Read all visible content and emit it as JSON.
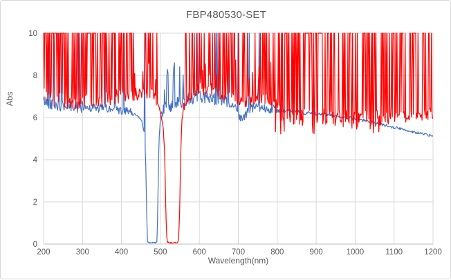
{
  "chart_data": {
    "type": "line",
    "title": "FBP480530-SET",
    "xlabel": "Wavelength(nm)",
    "ylabel": "Abs",
    "xlim": [
      200,
      1200
    ],
    "ylim": [
      0,
      10
    ],
    "x_ticks": [
      200,
      300,
      400,
      500,
      600,
      700,
      800,
      900,
      1000,
      1100,
      1200
    ],
    "y_ticks": [
      0,
      2,
      4,
      6,
      8,
      10
    ],
    "grid": true,
    "legend_position": "none",
    "sample_step_nm": 1.5,
    "noise_seed": 42,
    "clip_max_abs": 10,
    "series": [
      {
        "name": "blue",
        "color": "#4472C4",
        "line_width": 1.2,
        "passband_nm": [
          467,
          491
        ],
        "passband_min_abs": 0.07,
        "baseline_keypoints": [
          [
            200,
            6.8
          ],
          [
            230,
            6.6
          ],
          [
            260,
            6.55
          ],
          [
            300,
            6.5
          ],
          [
            340,
            6.45
          ],
          [
            380,
            6.4
          ],
          [
            420,
            6.25
          ],
          [
            440,
            6.1
          ],
          [
            452,
            5.85
          ],
          [
            458,
            5.3
          ],
          [
            462,
            4.2
          ],
          [
            465,
            1.2
          ],
          [
            467,
            0.07
          ],
          [
            491,
            0.07
          ],
          [
            493,
            1.5
          ],
          [
            496,
            4.8
          ],
          [
            500,
            6.0
          ],
          [
            505,
            6.35
          ],
          [
            520,
            6.55
          ],
          [
            545,
            6.75
          ],
          [
            570,
            6.9
          ],
          [
            600,
            7.0
          ],
          [
            630,
            6.95
          ],
          [
            660,
            6.8
          ],
          [
            685,
            6.6
          ],
          [
            700,
            6.15
          ],
          [
            710,
            5.95
          ],
          [
            718,
            6.05
          ],
          [
            728,
            6.4
          ],
          [
            750,
            6.5
          ],
          [
            775,
            6.45
          ],
          [
            800,
            6.35
          ],
          [
            840,
            6.28
          ],
          [
            880,
            6.22
          ],
          [
            920,
            6.15
          ],
          [
            960,
            6.05
          ],
          [
            1000,
            5.95
          ],
          [
            1040,
            5.8
          ],
          [
            1080,
            5.62
          ],
          [
            1120,
            5.45
          ],
          [
            1160,
            5.28
          ],
          [
            1200,
            5.12
          ]
        ],
        "noise_regions": [
          [
            200,
            300,
            0.28
          ],
          [
            300,
            435,
            0.22
          ],
          [
            435,
            502,
            0.04
          ],
          [
            502,
            560,
            0.35
          ],
          [
            560,
            700,
            0.3
          ],
          [
            700,
            800,
            0.22
          ],
          [
            800,
            900,
            0.1
          ],
          [
            900,
            1200,
            0.07
          ]
        ],
        "spike_regions": [
          [
            200,
            300,
            0.1,
            10,
            10
          ],
          [
            300,
            460,
            0.04,
            10,
            10
          ],
          [
            502,
            560,
            0.22,
            7.2,
            8.6
          ],
          [
            560,
            820,
            0.05,
            10,
            10
          ],
          [
            820,
            1060,
            0.022,
            10,
            10
          ]
        ]
      },
      {
        "name": "red",
        "color": "#FF0000",
        "line_width": 1.2,
        "passband_nm": [
          517,
          546
        ],
        "passband_min_abs": 0.07,
        "baseline_keypoints": [
          [
            200,
            7.0
          ],
          [
            240,
            6.8
          ],
          [
            280,
            6.7
          ],
          [
            320,
            6.8
          ],
          [
            360,
            6.9
          ],
          [
            400,
            7.0
          ],
          [
            440,
            7.1
          ],
          [
            470,
            7.15
          ],
          [
            485,
            7.0
          ],
          [
            495,
            6.6
          ],
          [
            502,
            6.1
          ],
          [
            507,
            5.6
          ],
          [
            511,
            4.3
          ],
          [
            514,
            1.5
          ],
          [
            517,
            0.07
          ],
          [
            546,
            0.07
          ],
          [
            549,
            1.2
          ],
          [
            552,
            4.2
          ],
          [
            555,
            5.8
          ],
          [
            560,
            6.6
          ],
          [
            570,
            7.0
          ],
          [
            590,
            7.3
          ],
          [
            620,
            7.4
          ],
          [
            650,
            7.2
          ],
          [
            680,
            7.0
          ],
          [
            700,
            6.8
          ],
          [
            712,
            6.65
          ],
          [
            725,
            6.85
          ],
          [
            750,
            6.9
          ],
          [
            775,
            6.9
          ],
          [
            795,
            6.6
          ],
          [
            810,
            6.25
          ],
          [
            840,
            6.1
          ],
          [
            880,
            6.0
          ],
          [
            920,
            6.05
          ],
          [
            960,
            5.95
          ],
          [
            1000,
            5.9
          ],
          [
            1040,
            5.95
          ],
          [
            1080,
            6.0
          ],
          [
            1120,
            6.05
          ],
          [
            1160,
            6.1
          ],
          [
            1200,
            6.2
          ]
        ],
        "noise_regions": [
          [
            200,
            300,
            0.4
          ],
          [
            300,
            430,
            0.35
          ],
          [
            430,
            495,
            0.3
          ],
          [
            495,
            558,
            0.04
          ],
          [
            558,
            700,
            0.3
          ],
          [
            700,
            795,
            0.28
          ],
          [
            795,
            1105,
            0.42
          ],
          [
            1105,
            1200,
            0.3
          ]
        ],
        "spike_regions": [
          [
            200,
            358,
            0.5,
            10,
            10
          ],
          [
            358,
            430,
            0.33,
            10,
            10
          ],
          [
            430,
            505,
            0.15,
            10,
            10
          ],
          [
            430,
            505,
            0.12,
            7.6,
            8.6
          ],
          [
            558,
            795,
            0.32,
            10,
            10
          ],
          [
            558,
            795,
            0.1,
            7.8,
            8.8
          ],
          [
            795,
            1105,
            0.45,
            10,
            10
          ],
          [
            795,
            1105,
            0.08,
            5.2,
            5.6
          ],
          [
            1105,
            1200,
            0.28,
            10,
            10
          ]
        ]
      }
    ]
  },
  "colors": {
    "gridline": "#D9D9D9",
    "axis_line": "#BFBFBF",
    "text": "#595959",
    "frame_border": "#D7D7D7",
    "background": "#FFFFFF"
  }
}
